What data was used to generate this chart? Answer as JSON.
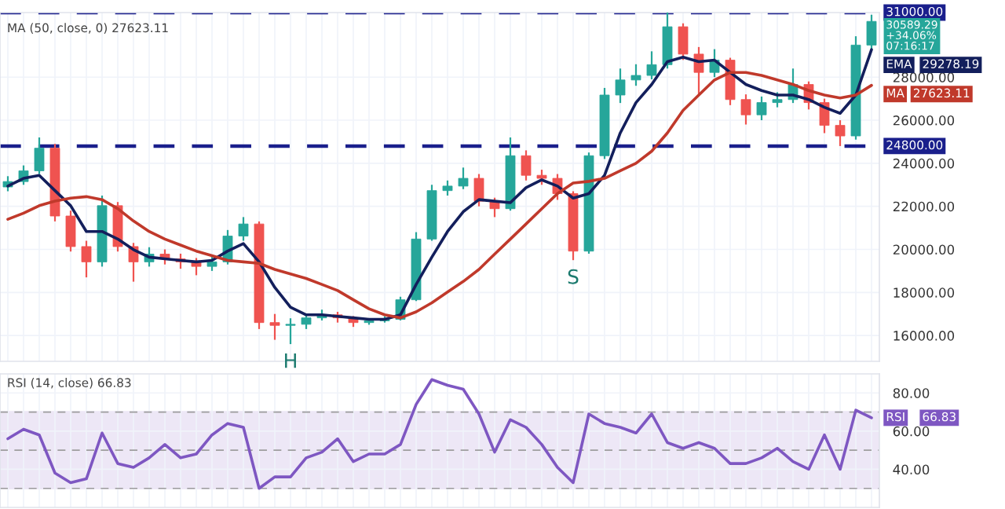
{
  "chart_data": [
    {
      "type": "candlestick",
      "categories": [
        null,
        null,
        null,
        null,
        null,
        null,
        null,
        null,
        null,
        null,
        null,
        null,
        null,
        null,
        null,
        null,
        null,
        null,
        null,
        null,
        null,
        null,
        null,
        null,
        null,
        null,
        null,
        null,
        null,
        null,
        null,
        null,
        null,
        null,
        null,
        null,
        null,
        null,
        null,
        null,
        null,
        null,
        null,
        null,
        null,
        null,
        null,
        null,
        null,
        null,
        null,
        null,
        null,
        null,
        null,
        null
      ],
      "ohlc": [
        [
          22900,
          23400,
          22700,
          23150
        ],
        [
          23150,
          23900,
          23000,
          23650
        ],
        [
          23650,
          25200,
          23500,
          24700
        ],
        [
          24700,
          24900,
          21300,
          21550
        ],
        [
          21550,
          21800,
          19900,
          20130
        ],
        [
          20130,
          20400,
          18700,
          19420
        ],
        [
          19420,
          22500,
          19200,
          22030
        ],
        [
          22030,
          22200,
          19900,
          20130
        ],
        [
          20130,
          20300,
          18500,
          19420
        ],
        [
          19420,
          20100,
          19200,
          19780
        ],
        [
          19780,
          20000,
          19300,
          19560
        ],
        [
          19560,
          19800,
          19100,
          19420
        ],
        [
          19420,
          19600,
          18800,
          19210
        ],
        [
          19210,
          19700,
          19000,
          19420
        ],
        [
          19420,
          20900,
          19300,
          20620
        ],
        [
          20620,
          21500,
          20400,
          21180
        ],
        [
          21180,
          21300,
          16300,
          16600
        ],
        [
          16600,
          17000,
          15800,
          16470
        ],
        [
          16470,
          16800,
          15600,
          16520
        ],
        [
          16520,
          17000,
          16300,
          16820
        ],
        [
          16820,
          17200,
          16700,
          16960
        ],
        [
          16960,
          17100,
          16600,
          16820
        ],
        [
          16820,
          16900,
          16400,
          16600
        ],
        [
          16600,
          16800,
          16500,
          16680
        ],
        [
          16680,
          16900,
          16600,
          16750
        ],
        [
          16750,
          17800,
          16700,
          17660
        ],
        [
          17660,
          20800,
          17600,
          20480
        ],
        [
          20480,
          23000,
          20400,
          22730
        ],
        [
          22730,
          23200,
          22500,
          22940
        ],
        [
          22940,
          23800,
          22800,
          23300
        ],
        [
          23300,
          23500,
          22000,
          22240
        ],
        [
          22240,
          22400,
          21500,
          21890
        ],
        [
          21890,
          25200,
          21800,
          24350
        ],
        [
          24350,
          24600,
          23200,
          23440
        ],
        [
          23440,
          23700,
          23000,
          23300
        ],
        [
          23300,
          23500,
          22300,
          22590
        ],
        [
          22590,
          22700,
          19500,
          19920
        ],
        [
          19920,
          24500,
          19800,
          24350
        ],
        [
          24350,
          27500,
          24200,
          27170
        ],
        [
          27170,
          28400,
          26800,
          27870
        ],
        [
          27870,
          28600,
          27600,
          28080
        ],
        [
          28080,
          29200,
          27900,
          28580
        ],
        [
          28580,
          31000,
          28400,
          30340
        ],
        [
          30340,
          30500,
          28800,
          29070
        ],
        [
          29070,
          29400,
          27200,
          28220
        ],
        [
          28220,
          29300,
          28000,
          28790
        ],
        [
          28790,
          28900,
          26700,
          26960
        ],
        [
          26960,
          27200,
          25800,
          26250
        ],
        [
          26250,
          27100,
          26000,
          26820
        ],
        [
          26820,
          27300,
          26600,
          26960
        ],
        [
          26960,
          28400,
          26800,
          27660
        ],
        [
          27660,
          27800,
          26500,
          26820
        ],
        [
          26820,
          27000,
          25400,
          25760
        ],
        [
          25760,
          26000,
          24800,
          25270
        ],
        [
          25270,
          29900,
          25100,
          29490
        ],
        [
          29490,
          30900,
          29300,
          30590
        ]
      ],
      "series": [
        {
          "name": "EMA",
          "type": "line",
          "color": "#131f5c",
          "values": [
            22940,
            23300,
            23440,
            22730,
            22030,
            20830,
            20830,
            20480,
            19990,
            19640,
            19560,
            19490,
            19420,
            19490,
            19920,
            20270,
            19420,
            18230,
            17310,
            16960,
            16960,
            16890,
            16820,
            16750,
            16750,
            16960,
            18370,
            19640,
            20830,
            21750,
            22310,
            22240,
            22170,
            22870,
            23230,
            22940,
            22380,
            22590,
            23440,
            25410,
            26820,
            27660,
            28720,
            28930,
            28720,
            28790,
            28220,
            27660,
            27380,
            27170,
            27170,
            26960,
            26600,
            26320,
            27170,
            29280
          ]
        },
        {
          "name": "MA",
          "type": "line",
          "color": "#c0392b",
          "values": [
            21400,
            21680,
            22030,
            22240,
            22380,
            22450,
            22310,
            21890,
            21320,
            20830,
            20480,
            20200,
            19920,
            19710,
            19490,
            19420,
            19350,
            19070,
            18860,
            18650,
            18370,
            18090,
            17660,
            17240,
            16960,
            16820,
            17100,
            17520,
            18020,
            18510,
            19070,
            19780,
            20480,
            21180,
            21890,
            22590,
            23080,
            23160,
            23300,
            23650,
            24000,
            24560,
            25410,
            26460,
            27170,
            27870,
            28220,
            28220,
            28080,
            27870,
            27660,
            27380,
            27170,
            27030,
            27170,
            27620
          ]
        }
      ],
      "ylim": [
        14800,
        31000
      ],
      "yticks": [
        {
          "value": 16000,
          "label": "16000.00"
        },
        {
          "value": 18000,
          "label": "18000.00"
        },
        {
          "value": 20000,
          "label": "20000.00"
        },
        {
          "value": 22000,
          "label": "22000.00"
        },
        {
          "value": 24000,
          "label": "24000.00"
        },
        {
          "value": 26000,
          "label": "26000.00"
        },
        {
          "value": 28000,
          "label": "28000.00"
        }
      ],
      "ref_lines": [
        {
          "axis": "y",
          "value": 24800,
          "label": "24800.00",
          "color": "#1a1f8c",
          "line_style": "dashed"
        },
        {
          "axis": "y",
          "value": 31000,
          "label": "31000.00",
          "color": "#1a1f8c",
          "line_style": "dashed"
        }
      ],
      "annotations": [
        "MA (50, close, 0) 27623.11",
        {
          "text": "H",
          "y": 15600
        },
        {
          "text": "S",
          "y": 19500
        },
        "30589.29",
        "+34.06%",
        "07:16:17",
        "29278.19",
        "27623.11"
      ],
      "grid": true,
      "legend": "right"
    },
    {
      "type": "line",
      "categories": [
        null,
        null,
        null,
        null,
        null,
        null,
        null,
        null,
        null,
        null,
        null,
        null,
        null,
        null,
        null,
        null,
        null,
        null,
        null,
        null,
        null,
        null,
        null,
        null,
        null,
        null,
        null,
        null,
        null,
        null,
        null,
        null,
        null,
        null,
        null,
        null,
        null,
        null,
        null,
        null,
        null,
        null,
        null,
        null,
        null,
        null,
        null,
        null,
        null,
        null,
        null,
        null,
        null,
        null,
        null,
        null
      ],
      "series": [
        {
          "name": "RSI",
          "color": "#7e57c2",
          "values": [
            56,
            61,
            58,
            38,
            33,
            35,
            59,
            43,
            41,
            46,
            53,
            46,
            48,
            58,
            64,
            62,
            30,
            36,
            36,
            46,
            49,
            56,
            44,
            48,
            48,
            53,
            74,
            87,
            84,
            82,
            69,
            49,
            66,
            62,
            53,
            41,
            33,
            69,
            64,
            62,
            59,
            69,
            54,
            51,
            54,
            51,
            43,
            43,
            46,
            51,
            44,
            40,
            58,
            40,
            71,
            67
          ]
        }
      ],
      "ylim": [
        20,
        90
      ],
      "yticks": [
        {
          "value": 40,
          "label": "40.00"
        },
        {
          "value": 60,
          "label": "60.00"
        },
        {
          "value": 80,
          "label": "80.00"
        }
      ],
      "ref_lines": [
        {
          "axis": "y",
          "value": 70,
          "color": "#9e9e9e",
          "line_style": "dashed"
        },
        {
          "axis": "y",
          "value": 50,
          "color": "#9e9e9e",
          "line_style": "dashed"
        },
        {
          "axis": "y",
          "value": 30,
          "color": "#9e9e9e",
          "line_style": "dashed"
        }
      ],
      "bands": [
        {
          "axis": "y",
          "from": 30,
          "to": 70,
          "color": "#ede7f6"
        }
      ],
      "annotations": [
        "RSI (14, close) 66.83",
        "66.83"
      ],
      "grid": true,
      "legend": "right"
    }
  ]
}
